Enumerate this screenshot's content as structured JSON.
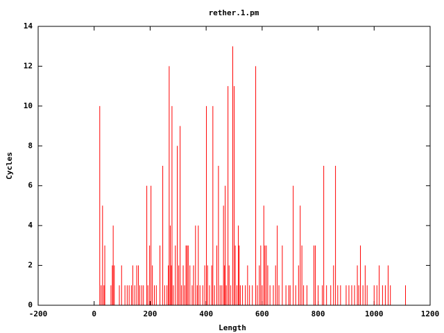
{
  "chart_data": {
    "type": "impulse",
    "title": "rether.1.pm",
    "xlabel": "Length",
    "ylabel": "Cycles",
    "color": "#ff0000",
    "xlim": [
      -200,
      1200
    ],
    "xticks": [
      -200,
      0,
      200,
      400,
      600,
      800,
      1000,
      1200
    ],
    "ylim": [
      0,
      14
    ],
    "yticks": [
      0,
      2,
      4,
      6,
      8,
      10,
      12,
      14
    ],
    "x": [
      20,
      25,
      30,
      35,
      38,
      60,
      65,
      68,
      72,
      90,
      98,
      110,
      118,
      125,
      133,
      138,
      145,
      152,
      158,
      163,
      170,
      176,
      188,
      192,
      198,
      203,
      208,
      215,
      222,
      235,
      245,
      252,
      260,
      265,
      268,
      272,
      276,
      278,
      283,
      290,
      297,
      302,
      307,
      312,
      318,
      323,
      328,
      332,
      336,
      342,
      350,
      355,
      362,
      368,
      372,
      378,
      388,
      395,
      401,
      405,
      412,
      420,
      424,
      430,
      438,
      444,
      450,
      456,
      462,
      466,
      468,
      472,
      478,
      482,
      488,
      495,
      500,
      504,
      510,
      515,
      518,
      522,
      530,
      540,
      548,
      555,
      565,
      577,
      583,
      590,
      595,
      600,
      606,
      610,
      615,
      620,
      628,
      640,
      648,
      654,
      660,
      672,
      685,
      695,
      700,
      711,
      720,
      730,
      736,
      742,
      748,
      760,
      785,
      790,
      800,
      815,
      820,
      830,
      845,
      855,
      862,
      870,
      880,
      900,
      910,
      920,
      930,
      940,
      945,
      951,
      960,
      968,
      975,
      1000,
      1010,
      1018,
      1030,
      1040,
      1050,
      1058,
      1112
    ],
    "values": [
      10,
      1,
      5,
      1,
      3,
      1,
      2,
      4,
      2,
      1,
      2,
      1,
      1,
      1,
      1,
      2,
      1,
      2,
      2,
      1,
      1,
      1,
      6,
      1,
      3,
      6,
      2,
      1,
      1,
      3,
      7,
      1,
      1,
      2,
      12,
      4,
      2,
      10,
      1,
      3,
      8,
      2,
      9,
      1,
      2,
      1,
      3,
      3,
      3,
      2,
      1,
      2,
      4,
      1,
      4,
      1,
      1,
      2,
      10,
      2,
      1,
      2,
      10,
      1,
      3,
      7,
      1,
      1,
      5,
      2,
      6,
      1,
      11,
      2,
      1,
      13,
      11,
      3,
      1,
      4,
      3,
      1,
      1,
      1,
      2,
      1,
      1,
      12,
      1,
      2,
      3,
      1,
      5,
      3,
      3,
      2,
      1,
      1,
      2,
      4,
      1,
      3,
      1,
      1,
      1,
      6,
      1,
      2,
      5,
      3,
      1,
      1,
      3,
      3,
      1,
      1,
      7,
      1,
      1,
      2,
      7,
      1,
      1,
      1,
      1,
      1,
      1,
      2,
      1,
      3,
      1,
      2,
      1,
      1,
      1,
      2,
      1,
      1,
      2,
      1,
      1
    ]
  }
}
